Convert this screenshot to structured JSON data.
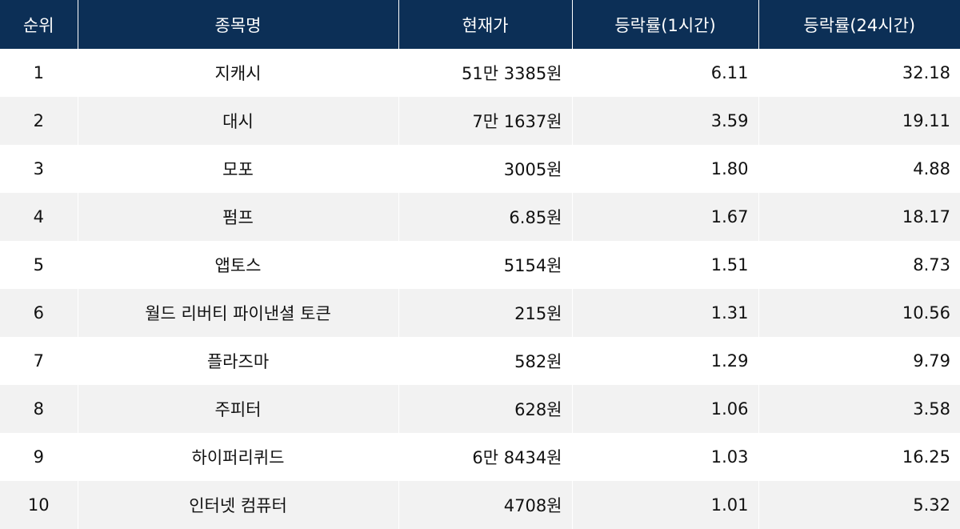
{
  "table": {
    "header": [
      "순위",
      "종목명",
      "현재가",
      "등락률(1시간)",
      "등락률(24시간)"
    ],
    "rows": [
      [
        "1",
        "지캐시",
        "51만 3385원",
        "6.11",
        "32.18"
      ],
      [
        "2",
        "대시",
        "7만 1637원",
        "3.59",
        "19.11"
      ],
      [
        "3",
        "모포",
        "3005원",
        "1.80",
        "4.88"
      ],
      [
        "4",
        "펌프",
        "6.85원",
        "1.67",
        "18.17"
      ],
      [
        "5",
        "앱토스",
        "5154원",
        "1.51",
        "8.73"
      ],
      [
        "6",
        "월드 리버티 파이낸셜 토큰",
        "215원",
        "1.31",
        "10.56"
      ],
      [
        "7",
        "플라즈마",
        "582원",
        "1.29",
        "9.79"
      ],
      [
        "8",
        "주피터",
        "628원",
        "1.06",
        "3.58"
      ],
      [
        "9",
        "하이퍼리퀴드",
        "6만 8434원",
        "1.03",
        "16.25"
      ],
      [
        "10",
        "인터넷 컴퓨터",
        "4708원",
        "1.01",
        "5.32"
      ]
    ]
  }
}
